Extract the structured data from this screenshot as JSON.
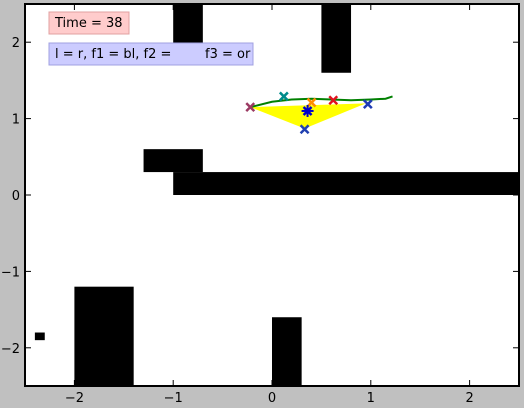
{
  "chart_data": {
    "type": "scatter",
    "xlim": [
      -2.5,
      2.5
    ],
    "ylim": [
      -2.5,
      2.5
    ],
    "xticks": [
      -2,
      -1,
      0,
      1,
      2
    ],
    "xtick_labels": [
      "−2",
      "−1",
      "0",
      "1",
      "2"
    ],
    "yticks": [
      -2,
      -1,
      0,
      1,
      2
    ],
    "ytick_labels": [
      "−2",
      "−1",
      "0",
      "1",
      "2"
    ],
    "grid": false,
    "annotations": {
      "time": "Time = 38",
      "legend_text": "l = r, f1 = bl, f2 = ",
      "legend_text_end": "f3 = or"
    },
    "colors": {
      "background": "#c0c0c0",
      "obstacle": "#000000",
      "formation_fill": "#ffff00",
      "trajectory": "#008000",
      "time_box": "#ffcccc",
      "legend_box": "#ccccff"
    },
    "obstacles": [
      {
        "name": "top-obstacle-left",
        "x": [
          -1.0,
          -0.7
        ],
        "y": [
          1.8,
          2.5
        ]
      },
      {
        "name": "top-obstacle-right",
        "x": [
          0.5,
          0.8
        ],
        "y": [
          1.6,
          2.5
        ]
      },
      {
        "name": "mid-block",
        "x": [
          -1.3,
          -0.7
        ],
        "y": [
          0.3,
          0.6
        ]
      },
      {
        "name": "horizontal-wall",
        "x": [
          -1.0,
          2.5
        ],
        "y": [
          0.0,
          0.3
        ]
      },
      {
        "name": "bottom-left-obstacle",
        "x": [
          -2.0,
          -1.4
        ],
        "y": [
          -2.5,
          -1.2
        ]
      },
      {
        "name": "bottom-mid-obstacle",
        "x": [
          0.0,
          0.3
        ],
        "y": [
          -2.5,
          -1.6
        ]
      },
      {
        "name": "small-square",
        "x": [
          -2.4,
          -2.3
        ],
        "y": [
          -1.9,
          -1.8
        ]
      }
    ],
    "formation_polygon": {
      "x": [
        -0.22,
        0.95,
        0.33
      ],
      "y": [
        1.15,
        1.2,
        0.87
      ]
    },
    "trajectory": {
      "x": [
        -0.22,
        0.0,
        0.2,
        0.4,
        0.6,
        0.8,
        1.0,
        1.15,
        1.22
      ],
      "y": [
        1.15,
        1.22,
        1.25,
        1.26,
        1.25,
        1.24,
        1.25,
        1.26,
        1.29
      ]
    },
    "markers": [
      {
        "name": "left-formation-marker",
        "x": -0.22,
        "y": 1.15,
        "color": "#9b3a63"
      },
      {
        "name": "leader-marker-cyan",
        "x": 0.12,
        "y": 1.29,
        "color": "#008b8b"
      },
      {
        "name": "marker-orange",
        "x": 0.4,
        "y": 1.21,
        "color": "#ff8c00"
      },
      {
        "name": "marker-red",
        "x": 0.62,
        "y": 1.24,
        "color": "#e0141e"
      },
      {
        "name": "center-star-marker",
        "x": 0.36,
        "y": 1.1,
        "color": "#0000cd"
      },
      {
        "name": "right-formation-marker",
        "x": 0.97,
        "y": 1.19,
        "color": "#1e3cb4"
      },
      {
        "name": "bottom-formation-marker",
        "x": 0.33,
        "y": 0.86,
        "color": "#2040b0"
      }
    ]
  }
}
